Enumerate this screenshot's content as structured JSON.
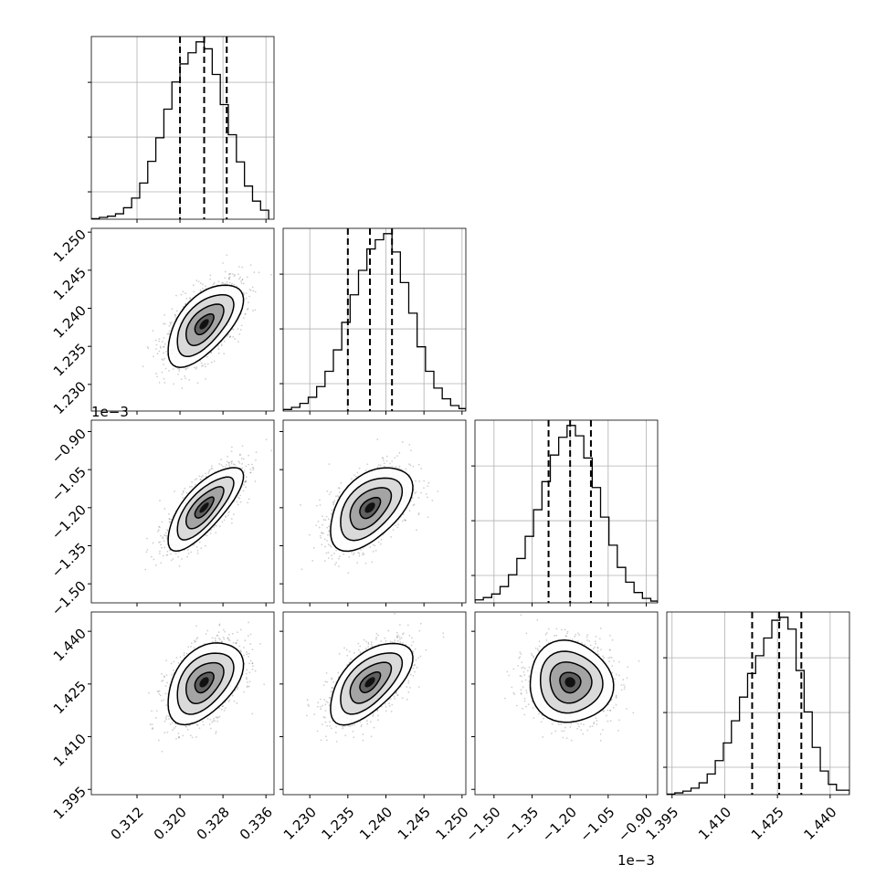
{
  "chart_data": {
    "type": "corner",
    "parameters": [
      {
        "range": [
          0.3035,
          0.3375
        ],
        "ticks": [
          0.312,
          0.32,
          0.328,
          0.336
        ],
        "tick_labels": [
          "0.312",
          "0.320",
          "0.328",
          "0.336"
        ],
        "y_tick_labels": [],
        "offset_label": "",
        "mean": 0.3245,
        "sigma": 0.0035,
        "quantiles": [
          0.32,
          0.3245,
          0.3287
        ],
        "hist_bins": [
          0.3035,
          0.305,
          0.3065,
          0.308,
          0.3095,
          0.311,
          0.3125,
          0.314,
          0.3155,
          0.317,
          0.3185,
          0.32,
          0.3215,
          0.323,
          0.3245,
          0.326,
          0.3275,
          0.329,
          0.3305,
          0.332,
          0.3335,
          0.335,
          0.3365
        ],
        "hist_counts": [
          2,
          6,
          10,
          18,
          38,
          70,
          120,
          192,
          270,
          365,
          455,
          515,
          552,
          588,
          565,
          480,
          380,
          280,
          190,
          110,
          60,
          30
        ]
      },
      {
        "range": [
          1.2265,
          1.2505
        ],
        "ticks": [
          1.23,
          1.235,
          1.24,
          1.245,
          1.25
        ],
        "tick_labels": [
          "1.230",
          "1.235",
          "1.240",
          "1.245",
          "1.250"
        ],
        "offset_label": "",
        "mean": 1.2379,
        "sigma": 0.0027,
        "quantiles": [
          1.235,
          1.2379,
          1.2408
        ],
        "hist_bins": [
          1.2265,
          1.2276,
          1.2287,
          1.2298,
          1.2309,
          1.232,
          1.2331,
          1.2342,
          1.2353,
          1.2364,
          1.2375,
          1.2386,
          1.2397,
          1.2408,
          1.2419,
          1.243,
          1.2441,
          1.2452,
          1.2463,
          1.2474,
          1.2485,
          1.2496,
          1.2505
        ],
        "hist_counts": [
          5,
          12,
          25,
          45,
          80,
          130,
          200,
          290,
          380,
          460,
          530,
          560,
          580,
          520,
          420,
          320,
          210,
          130,
          75,
          40,
          18,
          8
        ]
      },
      {
        "range": [
          -1.575,
          -0.855
        ],
        "ticks": [
          -1.5,
          -1.35,
          -1.2,
          -1.05,
          -0.9
        ],
        "tick_labels": [
          "−1.50",
          "−1.35",
          "−1.20",
          "−1.05",
          "−0.90"
        ],
        "offset_label": "1e−3",
        "mean": -1.2,
        "sigma": 0.082,
        "quantiles": [
          -1.285,
          -1.2,
          -1.118
        ],
        "hist_bins": [
          -1.575,
          -1.542,
          -1.509,
          -1.476,
          -1.443,
          -1.41,
          -1.377,
          -1.344,
          -1.311,
          -1.278,
          -1.245,
          -1.212,
          -1.179,
          -1.146,
          -1.113,
          -1.08,
          -1.047,
          -1.014,
          -0.981,
          -0.948,
          -0.915,
          -0.882,
          -0.855
        ],
        "hist_counts": [
          10,
          18,
          30,
          55,
          95,
          150,
          225,
          315,
          410,
          500,
          560,
          600,
          565,
          490,
          390,
          290,
          195,
          120,
          70,
          35,
          15,
          6
        ]
      },
      {
        "range": [
          1.3935,
          1.4455
        ],
        "ticks": [
          1.395,
          1.41,
          1.425,
          1.44
        ],
        "tick_labels": [
          "1.395",
          "1.410",
          "1.425",
          "1.440"
        ],
        "offset_label": "",
        "mean": 1.4255,
        "sigma": 0.0058,
        "quantiles": [
          1.4178,
          1.4255,
          1.4318
        ],
        "hist_bins": [
          1.3935,
          1.3958,
          1.3981,
          1.4004,
          1.4027,
          1.405,
          1.4073,
          1.4096,
          1.4119,
          1.4142,
          1.4165,
          1.4188,
          1.4211,
          1.4234,
          1.4257,
          1.428,
          1.4303,
          1.4326,
          1.4349,
          1.4372,
          1.4395,
          1.4418,
          1.4455
        ],
        "hist_counts": [
          2,
          6,
          12,
          22,
          40,
          70,
          115,
          175,
          250,
          330,
          410,
          470,
          530,
          590,
          600,
          560,
          420,
          280,
          160,
          80,
          35,
          15
        ]
      }
    ],
    "correlations": [
      [
        1.0,
        0.6,
        0.75,
        0.45
      ],
      [
        0.6,
        1.0,
        0.5,
        0.6
      ],
      [
        0.75,
        0.5,
        1.0,
        -0.05
      ],
      [
        0.45,
        0.6,
        -0.05,
        1.0
      ]
    ],
    "contour_levels_sigma": [
      0.5,
      1.0,
      1.5,
      2.0
    ],
    "colors": {
      "contour": "#000000",
      "grid": "#b0b0b0",
      "scatter": "#777777"
    },
    "grid": true
  }
}
